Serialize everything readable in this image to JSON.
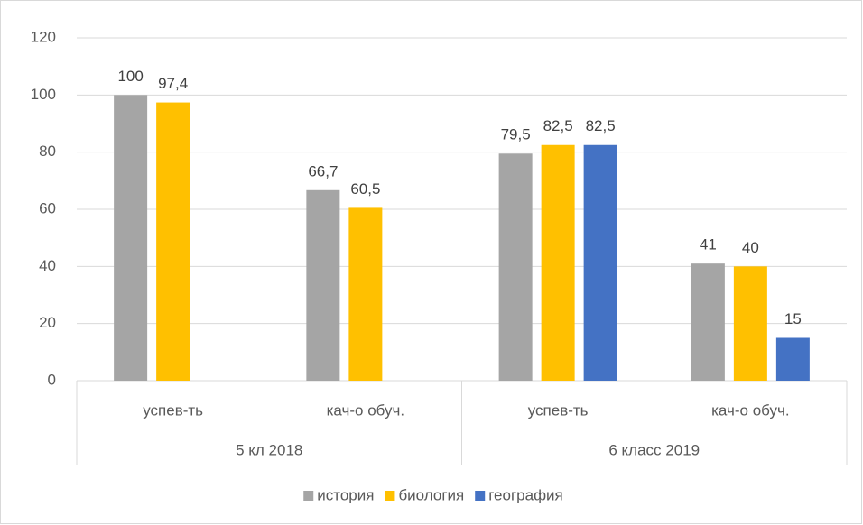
{
  "chart_data": {
    "type": "bar",
    "categories": [
      "успев-ть",
      "кач-о обуч.",
      "успев-ть",
      "кач-о обуч."
    ],
    "group_labels": [
      "5 кл 2018",
      "6 класс 2019"
    ],
    "series": [
      {
        "name": "история",
        "color": "#a5a5a5",
        "values": [
          100,
          66.7,
          79.5,
          41
        ],
        "value_labels": [
          "100",
          "66,7",
          "79,5",
          "41"
        ]
      },
      {
        "name": "биология",
        "color": "#ffc000",
        "values": [
          97.4,
          60.5,
          82.5,
          40
        ],
        "value_labels": [
          "97,4",
          "60,5",
          "82,5",
          "40"
        ]
      },
      {
        "name": "география",
        "color": "#4472c4",
        "values": [
          null,
          null,
          82.5,
          15
        ],
        "value_labels": [
          null,
          null,
          "82,5",
          "15"
        ]
      }
    ],
    "ylim": [
      0,
      120
    ],
    "yticks": [
      0,
      20,
      40,
      60,
      80,
      100,
      120
    ],
    "grid": true,
    "legend": "bottom"
  }
}
